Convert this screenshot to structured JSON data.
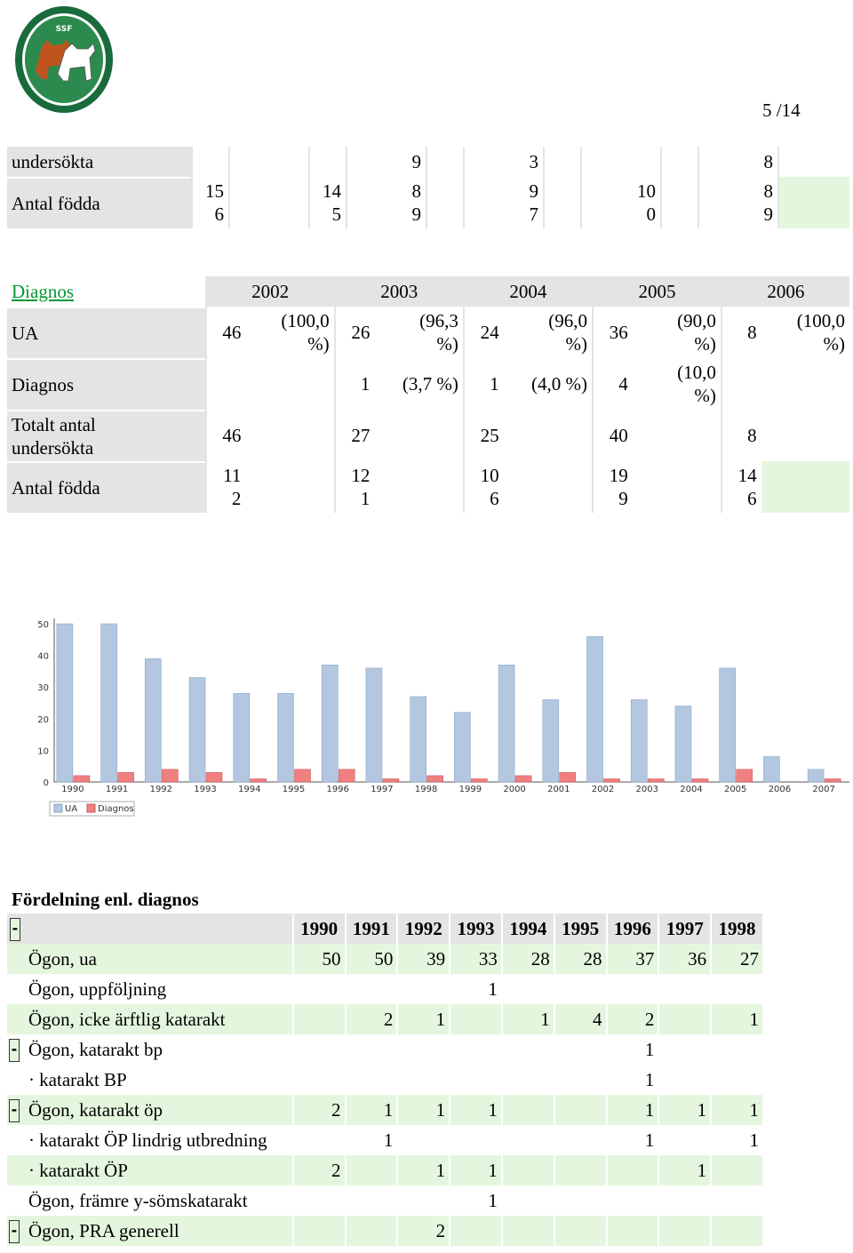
{
  "page_number": "5 /14",
  "table1": {
    "rows": [
      {
        "label": "undersökta",
        "cells": [
          "",
          "",
          "",
          "9",
          "",
          "3",
          "",
          "",
          "",
          "8",
          ""
        ]
      },
      {
        "label": "Antal födda",
        "cells": [
          "15\n6",
          "",
          "14\n5",
          "8\n9",
          "",
          "9\n7",
          "",
          "10\n0",
          "",
          "8\n9",
          ""
        ]
      }
    ]
  },
  "table2": {
    "link": "Diagnos",
    "years": [
      "2002",
      "2003",
      "2004",
      "2005",
      "2006"
    ],
    "rows": [
      {
        "label": "UA",
        "cells": [
          [
            "46",
            "(100,0\n%)"
          ],
          [
            "26",
            "(96,3\n%)"
          ],
          [
            "24",
            "(96,0\n%)"
          ],
          [
            "36",
            "(90,0\n%)"
          ],
          [
            "8",
            "(100,0\n%)"
          ]
        ]
      },
      {
        "label": "Diagnos",
        "cells": [
          [
            "",
            ""
          ],
          [
            "1",
            "(3,7 %)"
          ],
          [
            "1",
            "(4,0 %)"
          ],
          [
            "4",
            "(10,0\n%)"
          ],
          [
            "",
            ""
          ]
        ]
      },
      {
        "label": "Totalt antal\nundersökta",
        "cells": [
          [
            "46",
            ""
          ],
          [
            "27",
            ""
          ],
          [
            "25",
            ""
          ],
          [
            "40",
            ""
          ],
          [
            "8",
            ""
          ]
        ]
      },
      {
        "label": "Antal födda",
        "cells": [
          [
            "11\n2",
            ""
          ],
          [
            "12\n1",
            ""
          ],
          [
            "10\n6",
            ""
          ],
          [
            "19\n9",
            ""
          ],
          [
            "14\n6",
            ""
          ]
        ]
      }
    ]
  },
  "chart_data": {
    "type": "bar",
    "categories": [
      "1990",
      "1991",
      "1992",
      "1993",
      "1994",
      "1995",
      "1996",
      "1997",
      "1998",
      "1999",
      "2000",
      "2001",
      "2002",
      "2003",
      "2004",
      "2005",
      "2006",
      "2007"
    ],
    "series": [
      {
        "name": "UA",
        "color": "#b3c7e0",
        "values": [
          50,
          50,
          39,
          33,
          28,
          28,
          37,
          36,
          27,
          22,
          37,
          26,
          46,
          26,
          24,
          36,
          8,
          4
        ]
      },
      {
        "name": "Diagnos",
        "color": "#f08080",
        "values": [
          2,
          3,
          4,
          3,
          1,
          4,
          4,
          1,
          2,
          1,
          2,
          3,
          1,
          1,
          1,
          4,
          0,
          1
        ]
      }
    ],
    "ylim": [
      0,
      50
    ],
    "yticks": [
      "0",
      "10",
      "20",
      "30",
      "40",
      "50"
    ],
    "legend": "bottom-left"
  },
  "section3": {
    "title": "Fördelning enl. diagnos",
    "years": [
      "1990",
      "1991",
      "1992",
      "1993",
      "1994",
      "1995",
      "1996",
      "1997",
      "1998"
    ],
    "rows": [
      {
        "toggle": false,
        "sub": false,
        "label": "Ögon, ua",
        "vals": [
          "50",
          "50",
          "39",
          "33",
          "28",
          "28",
          "37",
          "36",
          "27"
        ],
        "bg": "g"
      },
      {
        "toggle": false,
        "sub": false,
        "label": "Ögon, uppföljning",
        "vals": [
          "",
          "",
          "",
          "1",
          "",
          "",
          "",
          "",
          ""
        ],
        "bg": "w"
      },
      {
        "toggle": false,
        "sub": false,
        "label": "Ögon, icke ärftlig katarakt",
        "vals": [
          "",
          "2",
          "1",
          "",
          "1",
          "4",
          "2",
          "",
          "1"
        ],
        "bg": "g"
      },
      {
        "toggle": true,
        "sub": false,
        "label": "Ögon, katarakt bp",
        "vals": [
          "",
          "",
          "",
          "",
          "",
          "",
          "1",
          "",
          ""
        ],
        "bg": "w"
      },
      {
        "toggle": false,
        "sub": true,
        "label": "· katarakt BP",
        "vals": [
          "",
          "",
          "",
          "",
          "",
          "",
          "1",
          "",
          ""
        ],
        "bg": "w"
      },
      {
        "toggle": true,
        "sub": false,
        "label": "Ögon, katarakt öp",
        "vals": [
          "2",
          "1",
          "1",
          "1",
          "",
          "",
          "1",
          "1",
          "1"
        ],
        "bg": "g"
      },
      {
        "toggle": false,
        "sub": true,
        "label": "· katarakt ÖP lindrig utbredning",
        "vals": [
          "",
          "1",
          "",
          "",
          "",
          "",
          "1",
          "",
          "1"
        ],
        "bg": "w"
      },
      {
        "toggle": false,
        "sub": true,
        "label": "· katarakt ÖP",
        "vals": [
          "2",
          "",
          "1",
          "1",
          "",
          "",
          "",
          "1",
          ""
        ],
        "bg": "g"
      },
      {
        "toggle": false,
        "sub": false,
        "label": "Ögon, främre y-sömskatarakt",
        "vals": [
          "",
          "",
          "",
          "1",
          "",
          "",
          "",
          "",
          ""
        ],
        "bg": "w"
      },
      {
        "toggle": true,
        "sub": false,
        "label": "Ögon, PRA generell",
        "vals": [
          "",
          "",
          "2",
          "",
          "",
          "",
          "",
          "",
          ""
        ],
        "bg": "g"
      }
    ],
    "toggle_symbol": "-"
  },
  "logo": {
    "text_top": "SPECIALKLUBBEN FÖR",
    "text_mid": "SSF",
    "text_bottom": "SKÄLLANDE FÅGELHUNDAR"
  }
}
